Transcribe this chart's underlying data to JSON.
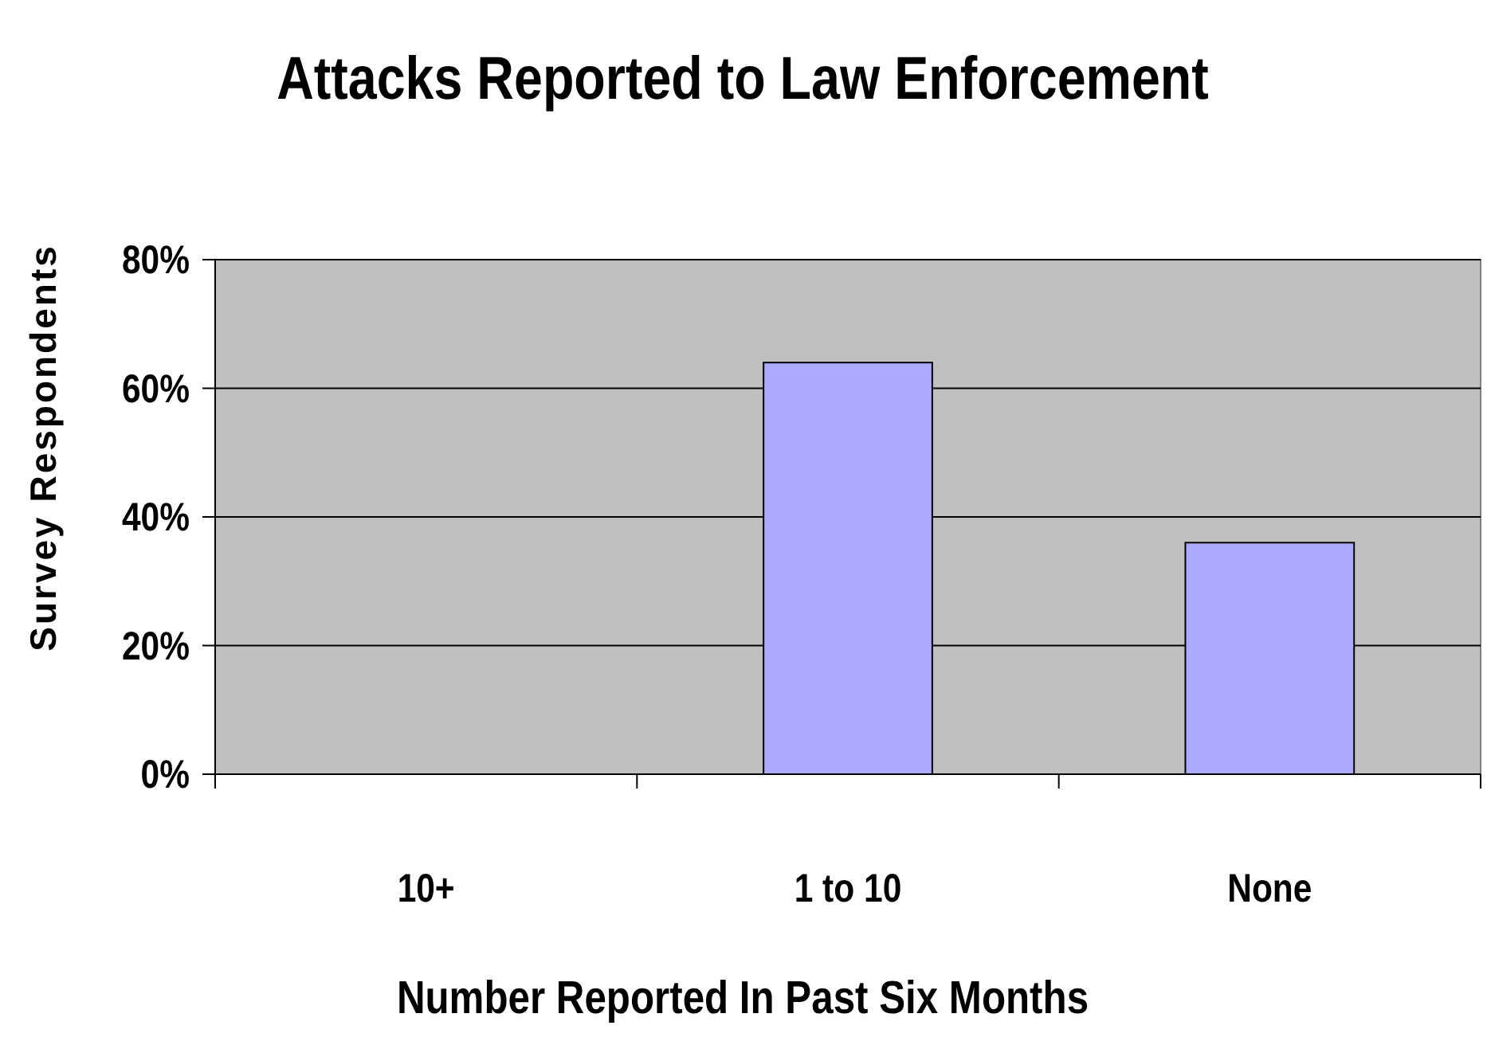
{
  "chart_data": {
    "type": "bar",
    "title": "Attacks Reported to Law Enforcement",
    "xlabel": "Number Reported In Past Six Months",
    "ylabel": "Survey Respondents",
    "categories": [
      "10+",
      "1 to 10",
      "None"
    ],
    "values": [
      0,
      64,
      36
    ],
    "color": "#aaaaff",
    "ylim": [
      0,
      80
    ],
    "yticks": [
      {
        "value": 0,
        "label": "0%"
      },
      {
        "value": 20,
        "label": "20%"
      },
      {
        "value": 40,
        "label": "40%"
      },
      {
        "value": 60,
        "label": "60%"
      },
      {
        "value": 80,
        "label": "80%"
      }
    ],
    "grid": "y"
  }
}
